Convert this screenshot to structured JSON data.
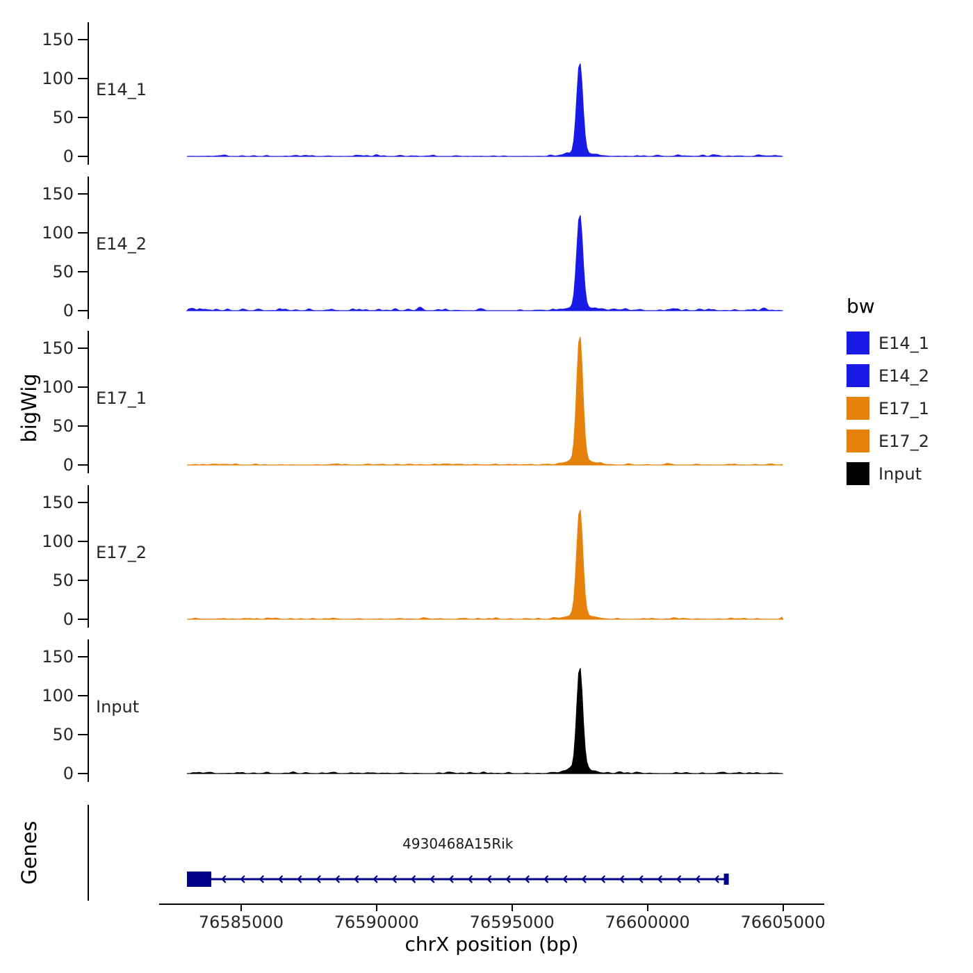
{
  "chart_data": {
    "type": "area",
    "title": "",
    "xlabel": "chrX position (bp)",
    "ylabel": "bigWig",
    "x_domain": [
      76582000,
      76606500
    ],
    "x_ticks": [
      76585000,
      76590000,
      76595000,
      76600000,
      76605000
    ],
    "y_ticks": [
      0,
      50,
      100,
      150
    ],
    "ylim": [
      0,
      165
    ],
    "grid": false,
    "legend_position": "right",
    "tracks": [
      {
        "name": "E14_1",
        "color": "#1A1AE6",
        "signal_start": 76583000,
        "signal_end": 76605000,
        "peak_x": 76597500,
        "peak_height": 115,
        "peak_sigma_bp": 110,
        "noise_level": 2
      },
      {
        "name": "E14_2",
        "color": "#1A1AE6",
        "signal_start": 76583000,
        "signal_end": 76605000,
        "peak_x": 76597500,
        "peak_height": 118,
        "peak_sigma_bp": 110,
        "noise_level": 4
      },
      {
        "name": "E17_1",
        "color": "#E6820C",
        "signal_start": 76583000,
        "signal_end": 76605000,
        "peak_x": 76597500,
        "peak_height": 160,
        "peak_sigma_bp": 110,
        "noise_level": 2
      },
      {
        "name": "E17_2",
        "color": "#E6820C",
        "signal_start": 76583000,
        "signal_end": 76605000,
        "peak_x": 76597500,
        "peak_height": 136,
        "peak_sigma_bp": 110,
        "noise_level": 2.5
      },
      {
        "name": "Input",
        "color": "#000000",
        "signal_start": 76583000,
        "signal_end": 76605000,
        "peak_x": 76597500,
        "peak_height": 131,
        "peak_sigma_bp": 110,
        "noise_level": 2.5
      }
    ],
    "gene_track": {
      "panel_label": "Genes",
      "arrow_spacing_bp": 700,
      "genes": [
        {
          "name": "4930468A15Rik",
          "start": 76583000,
          "end": 76603000,
          "strand": "-",
          "exon": {
            "start": 76583000,
            "end": 76583900
          },
          "color": "#00008B"
        }
      ]
    },
    "legend": {
      "title": "bw",
      "entries": [
        {
          "label": "E14_1",
          "color": "#1A1AE6"
        },
        {
          "label": "E14_2",
          "color": "#1A1AE6"
        },
        {
          "label": "E17_1",
          "color": "#E6820C"
        },
        {
          "label": "E17_2",
          "color": "#E6820C"
        },
        {
          "label": "Input",
          "color": "#000000"
        }
      ]
    }
  }
}
